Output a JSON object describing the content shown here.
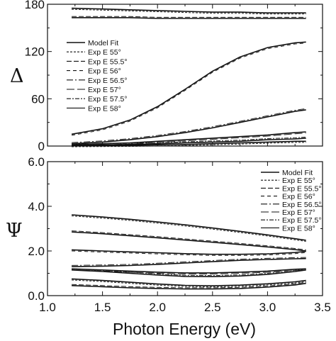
{
  "chart_data": [
    {
      "type": "line",
      "ylabel": "Δ",
      "xlim": [
        1.0,
        3.5
      ],
      "ylim": [
        0,
        180
      ],
      "yticks": [
        "0",
        "60",
        "120",
        "180"
      ],
      "legend": {
        "placement": "left",
        "entries": [
          "Model Fit",
          "Exp E 55°",
          "Exp E 55.5°",
          "Exp E 56°",
          "Exp E 56.5°",
          "Exp E 57°",
          "Exp E 57.5°",
          "Exp E 58°"
        ]
      },
      "x": [
        1.22,
        1.5,
        1.75,
        2.0,
        2.25,
        2.5,
        2.75,
        3.0,
        3.25,
        3.35
      ],
      "series": [
        {
          "name": "Model Fit",
          "values": [
            175,
            174,
            173,
            172,
            171,
            170,
            170,
            169,
            169,
            169
          ]
        },
        {
          "name": "Model Fit",
          "values": [
            163,
            163,
            163,
            162,
            162,
            162,
            162,
            162,
            162,
            162
          ]
        },
        {
          "name": "Model Fit",
          "values": [
            15,
            22,
            33,
            50,
            72,
            95,
            113,
            125,
            131,
            132
          ]
        },
        {
          "name": "Model Fit",
          "values": [
            3,
            5,
            8,
            12,
            17,
            23,
            30,
            37,
            44,
            46
          ]
        },
        {
          "name": "Model Fit",
          "values": [
            2,
            3,
            4,
            6,
            8,
            10,
            12,
            14,
            17,
            18
          ]
        },
        {
          "name": "Model Fit",
          "values": [
            1,
            1.5,
            2,
            3,
            4,
            5,
            6,
            8,
            9,
            10
          ]
        },
        {
          "name": "Model Fit",
          "values": [
            0.5,
            0.8,
            1,
            1.5,
            2,
            3,
            4,
            5,
            6,
            6
          ]
        }
      ]
    },
    {
      "type": "line",
      "ylabel": "Ψ",
      "xlabel": "Photon Energy (eV)",
      "xlim": [
        1.0,
        3.5
      ],
      "ylim": [
        0,
        6
      ],
      "xticks": [
        "1.0",
        "1.5",
        "2.0",
        "2.5",
        "3.0",
        "3.5"
      ],
      "yticks": [
        "0.0",
        "2.0",
        "4.0",
        "6.0"
      ],
      "legend": {
        "placement": "right",
        "entries": [
          "Model Fit",
          "Exp E 55°",
          "Exp E 55.5°",
          "Exp E 56°",
          "Exp E 56.5°",
          "Exp E 57°",
          "Exp E 57.5°",
          "Exp E 58°"
        ]
      },
      "x": [
        1.22,
        1.5,
        1.75,
        2.0,
        2.25,
        2.5,
        2.75,
        3.0,
        3.25,
        3.35
      ],
      "series": [
        {
          "name": "Model Fit",
          "values": [
            3.62,
            3.52,
            3.42,
            3.3,
            3.17,
            3.03,
            2.88,
            2.72,
            2.55,
            2.48
          ]
        },
        {
          "name": "Model Fit",
          "values": [
            2.85,
            2.77,
            2.68,
            2.59,
            2.49,
            2.39,
            2.29,
            2.18,
            2.06,
            2.0
          ]
        },
        {
          "name": "Model Fit",
          "values": [
            2.05,
            2.0,
            1.96,
            1.92,
            1.88,
            1.85,
            1.85,
            1.87,
            1.93,
            1.98
          ]
        },
        {
          "name": "Model Fit",
          "values": [
            1.3,
            1.32,
            1.35,
            1.4,
            1.46,
            1.52,
            1.58,
            1.62,
            1.65,
            1.66
          ]
        },
        {
          "name": "Model Fit",
          "values": [
            1.2,
            1.15,
            1.1,
            1.05,
            1.02,
            1.02,
            1.05,
            1.1,
            1.18,
            1.2
          ]
        },
        {
          "name": "Model Fit",
          "values": [
            1.15,
            1.08,
            1.0,
            0.92,
            0.86,
            0.85,
            0.88,
            0.95,
            1.08,
            1.15
          ]
        },
        {
          "name": "Model Fit",
          "values": [
            0.75,
            0.68,
            0.6,
            0.52,
            0.46,
            0.44,
            0.47,
            0.53,
            0.62,
            0.68
          ]
        },
        {
          "name": "Model Fit",
          "values": [
            0.45,
            0.4,
            0.35,
            0.32,
            0.3,
            0.3,
            0.32,
            0.38,
            0.48,
            0.55
          ]
        }
      ]
    }
  ]
}
